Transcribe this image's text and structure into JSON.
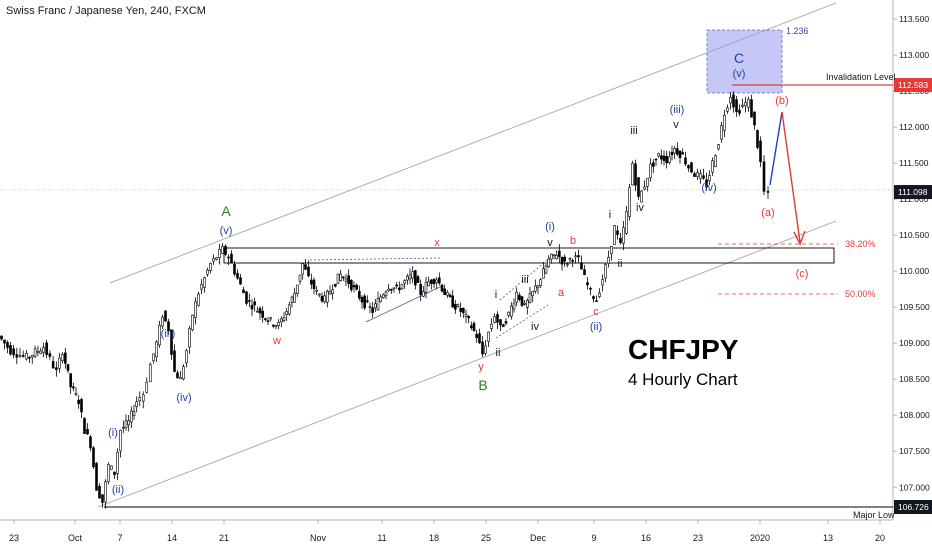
{
  "header": {
    "title": "Swiss Franc / Japanese Yen, 240, FXCM"
  },
  "overlay": {
    "symbol": "CHFJPY",
    "subtitle": "4 Hourly Chart"
  },
  "colors": {
    "candle": "#000000",
    "blue_label": "#1f3f9f",
    "red_label": "#e53935",
    "green_label": "#2e7d32",
    "fib_box": "#c5c8f7",
    "invalidation_line": "#e53935",
    "axis_text": "#131722"
  },
  "chart_data": {
    "type": "candlestick",
    "title": "Swiss Franc / Japanese Yen, 240, FXCM",
    "ylim": [
      106.4,
      113.9
    ],
    "y_ticks": [
      107.0,
      107.5,
      108.0,
      108.5,
      109.0,
      109.5,
      110.0,
      110.5,
      111.0,
      111.5,
      112.0,
      112.5,
      113.0,
      113.5
    ],
    "y_tick_labels": [
      "107.000",
      "107.500",
      "108.000",
      "108.500",
      "109.000",
      "109.500",
      "110.000",
      "110.500",
      "111.000",
      "111.500",
      "112.000",
      "112.500",
      "113.000",
      "113.500"
    ],
    "x_ticks": [
      "23",
      "Oct",
      "7",
      "14",
      "21",
      "Nov",
      "11",
      "18",
      "25",
      "Dec",
      "9",
      "16",
      "23",
      "2020",
      "13",
      "20"
    ],
    "price_badges": [
      {
        "label": "112.583",
        "value": 112.583,
        "color": "#e53935"
      },
      {
        "label": "111.098",
        "value": 111.098,
        "color": "#131722"
      },
      {
        "label": "106.726",
        "value": 106.726,
        "color": "#131722"
      }
    ],
    "horizontal_levels": [
      {
        "name": "Invalidation Level",
        "value": 112.583
      },
      {
        "name": "38.20%",
        "value": 110.35
      },
      {
        "name": "50.00%",
        "value": 109.68
      },
      {
        "name": "Major Low",
        "value": 106.726
      },
      {
        "name": "1.236",
        "value": 113.3
      }
    ],
    "wave_labels": [
      {
        "text": "A",
        "color": "green"
      },
      {
        "text": "(v)",
        "color": "blue"
      },
      {
        "text": "(iii)",
        "color": "blue"
      },
      {
        "text": "(iv)",
        "color": "blue"
      },
      {
        "text": "(i)",
        "color": "blue"
      },
      {
        "text": "(ii)",
        "color": "blue"
      },
      {
        "text": "w",
        "color": "red"
      },
      {
        "text": "x",
        "color": "red"
      },
      {
        "text": "y",
        "color": "red"
      },
      {
        "text": "B",
        "color": "green"
      },
      {
        "text": "i",
        "color": "black"
      },
      {
        "text": "ii",
        "color": "black"
      },
      {
        "text": "iii",
        "color": "black"
      },
      {
        "text": "iv",
        "color": "black"
      },
      {
        "text": "v",
        "color": "black"
      },
      {
        "text": "(i)",
        "color": "blue"
      },
      {
        "text": "a",
        "color": "red"
      },
      {
        "text": "b",
        "color": "red"
      },
      {
        "text": "c",
        "color": "red"
      },
      {
        "text": "(ii)",
        "color": "blue"
      },
      {
        "text": "i",
        "color": "black"
      },
      {
        "text": "ii",
        "color": "black"
      },
      {
        "text": "iii",
        "color": "black"
      },
      {
        "text": "iv",
        "color": "black"
      },
      {
        "text": "v",
        "color": "black"
      },
      {
        "text": "(iii)",
        "color": "blue"
      },
      {
        "text": "(iv)",
        "color": "blue"
      },
      {
        "text": "C",
        "color": "blue"
      },
      {
        "text": "(v)",
        "color": "blue"
      },
      {
        "text": "(a)",
        "color": "red"
      },
      {
        "text": "(b)",
        "color": "red"
      },
      {
        "text": "(c)",
        "color": "red"
      }
    ],
    "price_path": [
      [
        0,
        109.1
      ],
      [
        12,
        108.9
      ],
      [
        28,
        108.8
      ],
      [
        45,
        108.95
      ],
      [
        58,
        108.6
      ],
      [
        64,
        108.9
      ],
      [
        72,
        108.4
      ],
      [
        80,
        108.2
      ],
      [
        86,
        107.8
      ],
      [
        92,
        107.6
      ],
      [
        98,
        107.0
      ],
      [
        104,
        106.8
      ],
      [
        110,
        107.3
      ],
      [
        116,
        107.2
      ],
      [
        122,
        107.8
      ],
      [
        130,
        107.9
      ],
      [
        138,
        108.2
      ],
      [
        145,
        108.3
      ],
      [
        152,
        108.7
      ],
      [
        158,
        109.0
      ],
      [
        164,
        109.4
      ],
      [
        170,
        109.2
      ],
      [
        176,
        108.6
      ],
      [
        182,
        108.5
      ],
      [
        188,
        108.9
      ],
      [
        194,
        109.4
      ],
      [
        200,
        109.7
      ],
      [
        206,
        109.9
      ],
      [
        212,
        110.1
      ],
      [
        218,
        110.2
      ],
      [
        224,
        110.3
      ],
      [
        230,
        110.2
      ],
      [
        236,
        110.0
      ],
      [
        242,
        109.8
      ],
      [
        248,
        109.6
      ],
      [
        256,
        109.5
      ],
      [
        264,
        109.4
      ],
      [
        272,
        109.3
      ],
      [
        280,
        109.25
      ],
      [
        288,
        109.45
      ],
      [
        296,
        109.7
      ],
      [
        304,
        110.1
      ],
      [
        310,
        109.9
      ],
      [
        318,
        109.7
      ],
      [
        326,
        109.6
      ],
      [
        334,
        109.8
      ],
      [
        342,
        109.95
      ],
      [
        350,
        109.85
      ],
      [
        358,
        109.7
      ],
      [
        366,
        109.55
      ],
      [
        374,
        109.45
      ],
      [
        382,
        109.65
      ],
      [
        390,
        109.8
      ],
      [
        398,
        109.75
      ],
      [
        406,
        109.85
      ],
      [
        414,
        109.95
      ],
      [
        422,
        109.7
      ],
      [
        430,
        109.85
      ],
      [
        438,
        109.9
      ],
      [
        446,
        109.7
      ],
      [
        454,
        109.55
      ],
      [
        462,
        109.45
      ],
      [
        470,
        109.3
      ],
      [
        478,
        109.1
      ],
      [
        484,
        108.85
      ],
      [
        490,
        109.15
      ],
      [
        496,
        109.4
      ],
      [
        502,
        109.2
      ],
      [
        510,
        109.4
      ],
      [
        518,
        109.7
      ],
      [
        526,
        109.5
      ],
      [
        534,
        109.7
      ],
      [
        542,
        109.9
      ],
      [
        550,
        110.15
      ],
      [
        558,
        110.25
      ],
      [
        566,
        110.1
      ],
      [
        574,
        110.2
      ],
      [
        580,
        110.15
      ],
      [
        586,
        109.9
      ],
      [
        592,
        109.7
      ],
      [
        598,
        109.6
      ],
      [
        604,
        109.9
      ],
      [
        610,
        110.2
      ],
      [
        616,
        110.6
      ],
      [
        622,
        110.35
      ],
      [
        628,
        110.8
      ],
      [
        634,
        111.5
      ],
      [
        640,
        111.0
      ],
      [
        646,
        111.2
      ],
      [
        652,
        111.45
      ],
      [
        660,
        111.6
      ],
      [
        668,
        111.55
      ],
      [
        676,
        111.7
      ],
      [
        684,
        111.6
      ],
      [
        690,
        111.45
      ],
      [
        696,
        111.35
      ],
      [
        702,
        111.3
      ],
      [
        708,
        111.2
      ],
      [
        714,
        111.5
      ],
      [
        720,
        111.8
      ],
      [
        726,
        112.2
      ],
      [
        732,
        112.45
      ],
      [
        738,
        112.2
      ],
      [
        744,
        112.3
      ],
      [
        750,
        112.35
      ],
      [
        756,
        112.0
      ],
      [
        762,
        111.5
      ],
      [
        766,
        111.1
      ],
      [
        770,
        111.05
      ]
    ]
  }
}
